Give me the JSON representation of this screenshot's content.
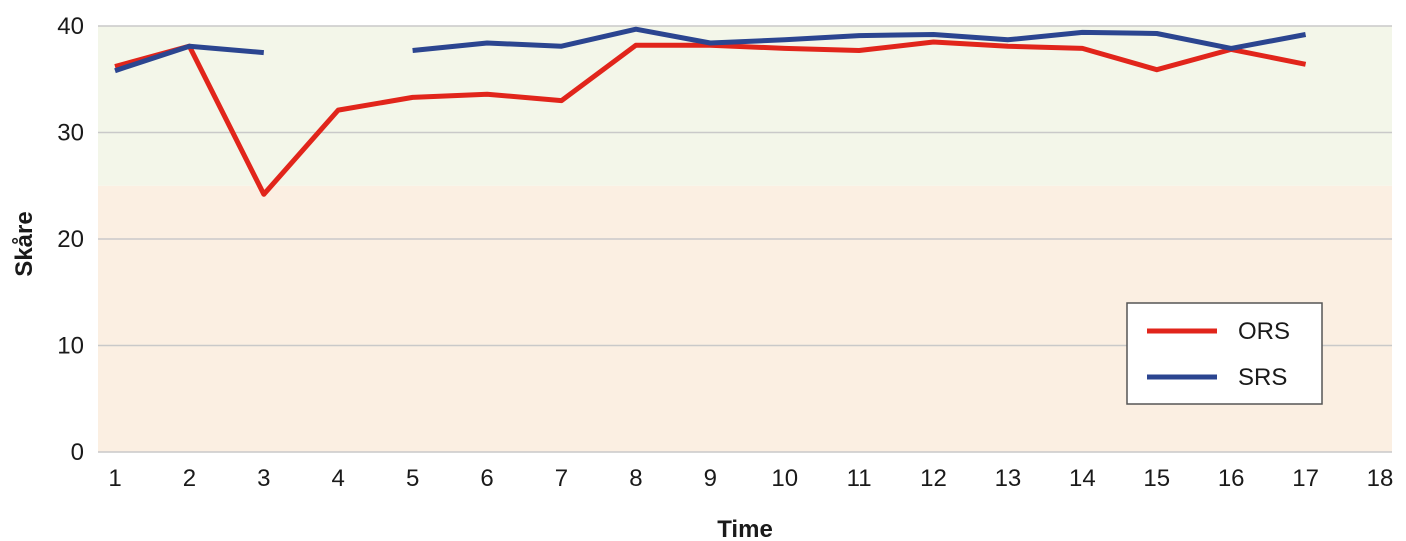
{
  "chart_data": {
    "type": "line",
    "title": "",
    "xlabel": "Time",
    "ylabel": "Skåre",
    "x": [
      1,
      2,
      3,
      4,
      5,
      6,
      7,
      8,
      9,
      10,
      11,
      12,
      13,
      14,
      15,
      16,
      17,
      18
    ],
    "xlim": [
      1,
      18
    ],
    "ylim": [
      0,
      40
    ],
    "y_ticks": [
      0,
      10,
      20,
      30,
      40
    ],
    "grid": "horizontal",
    "legend_position": "bottom-right",
    "background_bands": [
      {
        "from": 0,
        "to": 25,
        "color": "#fbefe2"
      },
      {
        "from": 25,
        "to": 40,
        "color": "#f3f6e9"
      }
    ],
    "series": [
      {
        "name": "ORS",
        "color": "#e1251b",
        "values": [
          36.2,
          38.1,
          24.2,
          32.1,
          33.3,
          33.6,
          33.0,
          38.2,
          38.2,
          37.9,
          37.7,
          38.5,
          38.1,
          37.9,
          35.9,
          37.8,
          36.4,
          null
        ]
      },
      {
        "name": "SRS",
        "color": "#2b4590",
        "values": [
          35.8,
          38.1,
          37.5,
          null,
          37.7,
          38.4,
          38.1,
          39.7,
          38.4,
          38.7,
          39.1,
          39.2,
          38.7,
          39.4,
          39.3,
          37.9,
          39.2,
          null
        ]
      }
    ]
  }
}
